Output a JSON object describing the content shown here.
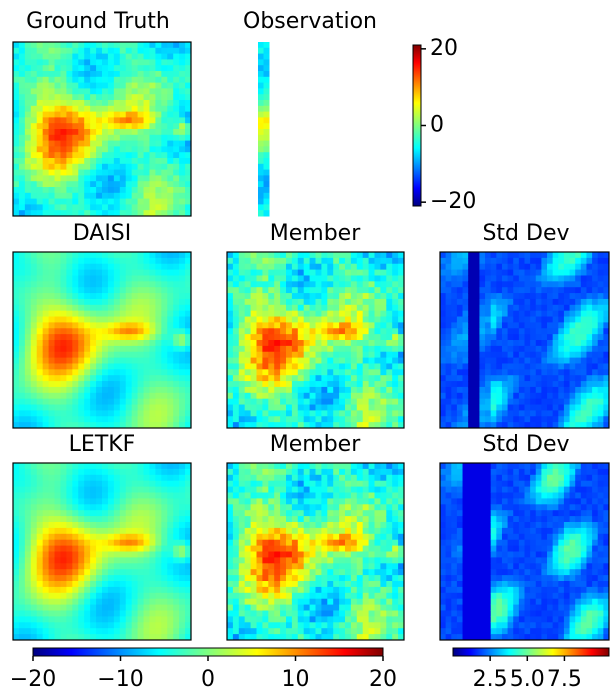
{
  "chart_data": [
    {
      "type": "heatmap",
      "title": "Ground Truth",
      "field": "truth"
    },
    {
      "type": "heatmap",
      "title": "Observation",
      "field": "obs"
    },
    {
      "type": "heatmap",
      "title": "DAISI",
      "field": "smooth"
    },
    {
      "type": "heatmap",
      "title": "Member",
      "field": "member"
    },
    {
      "type": "heatmap",
      "title": "Std Dev",
      "field": "std1"
    },
    {
      "type": "heatmap",
      "title": "LETKF",
      "field": "smooth"
    },
    {
      "type": "heatmap",
      "title": "Member",
      "field": "member"
    },
    {
      "type": "heatmap",
      "title": "Std Dev",
      "field": "std2"
    }
  ],
  "colorbars": [
    {
      "orientation": "vertical",
      "clim": [
        -21,
        21
      ],
      "ticks": [
        {
          "value": -20,
          "label": "−20"
        },
        0,
        20
      ]
    },
    {
      "orientation": "horizontal",
      "clim": [
        -20,
        20
      ],
      "ticks": [
        {
          "value": -20,
          "label": "−20"
        },
        {
          "value": -10,
          "label": "−10"
        },
        0,
        10,
        20
      ]
    },
    {
      "orientation": "horizontal",
      "clim": [
        0,
        10.5
      ],
      "ticks": [
        2.5,
        {
          "value": 5,
          "label": "5.0"
        },
        7.5
      ]
    }
  ]
}
